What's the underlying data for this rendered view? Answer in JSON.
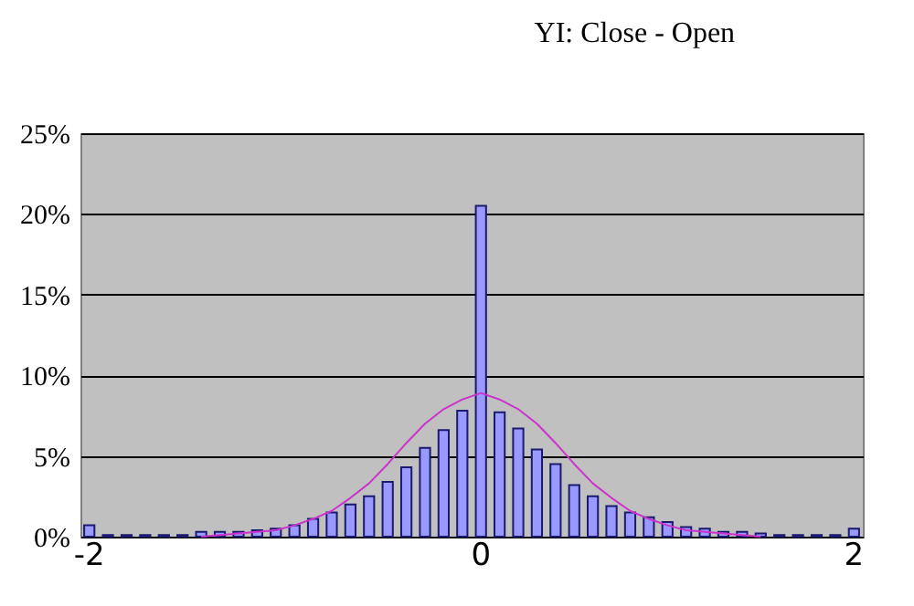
{
  "chart_data": {
    "type": "bar",
    "title": "YI: Close - Open",
    "categories": [
      "-2",
      null,
      null,
      null,
      null,
      null,
      null,
      null,
      null,
      null,
      null,
      null,
      null,
      null,
      null,
      null,
      null,
      null,
      null,
      null,
      null,
      "0",
      null,
      null,
      null,
      null,
      null,
      null,
      null,
      null,
      null,
      null,
      null,
      null,
      null,
      null,
      null,
      null,
      null,
      null,
      null,
      "2"
    ],
    "series": [
      {
        "color": "#9999ff",
        "values": [
          0.7,
          0.1,
          0.1,
          0.1,
          0.1,
          0.1,
          0.3,
          0.3,
          0.3,
          0.4,
          0.5,
          0.7,
          1.1,
          1.5,
          2.0,
          2.5,
          3.4,
          4.3,
          5.5,
          6.6,
          7.8,
          20.5,
          7.7,
          6.7,
          5.4,
          4.5,
          3.2,
          2.5,
          1.9,
          1.5,
          1.2,
          0.9,
          0.6,
          0.5,
          0.3,
          0.3,
          0.2,
          0.1,
          0.1,
          0.1,
          0.1,
          0.5
        ]
      },
      {
        "type": "line",
        "color": "#cc33cc",
        "values": [
          null,
          null,
          null,
          null,
          null,
          null,
          0,
          0.1,
          0.2,
          0.3,
          0.4,
          0.7,
          1.1,
          1.6,
          2.4,
          3.3,
          4.5,
          5.8,
          7.0,
          7.9,
          8.5,
          8.9,
          8.5,
          7.9,
          7.0,
          5.8,
          4.5,
          3.3,
          2.4,
          1.6,
          1.1,
          0.7,
          0.4,
          0.3,
          0.2,
          0.1,
          0,
          null,
          null,
          null,
          null,
          null
        ]
      }
    ],
    "ylim": [
      0,
      25
    ],
    "yticks": [
      {
        "value": 0,
        "label": "0%"
      },
      {
        "value": 5,
        "label": "5%"
      },
      {
        "value": 10,
        "label": "10%"
      },
      {
        "value": 15,
        "label": "15%"
      },
      {
        "value": 20,
        "label": "20%"
      },
      {
        "value": 25,
        "label": "25%"
      }
    ],
    "grid": "y",
    "legend": false,
    "marker": "none",
    "line_style": "solid"
  }
}
